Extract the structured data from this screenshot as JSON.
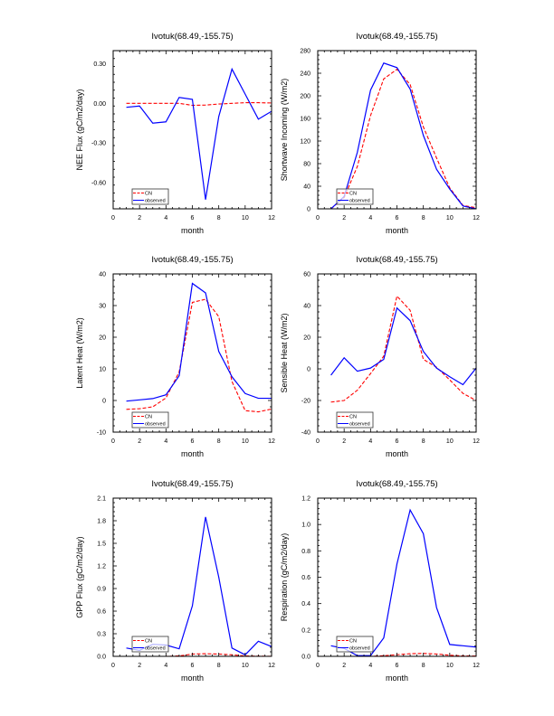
{
  "legend_labels": [
    "CN",
    "observed"
  ],
  "series_colors": {
    "CN": "#ff0000",
    "observed": "#0000ff"
  },
  "chart_data": [
    {
      "id": "nee",
      "type": "line",
      "title": "Ivotuk(68.49,-155.75)",
      "xlabel": "month",
      "ylabel": "NEE Flux (gC/m2/day)",
      "xlim": [
        0,
        12
      ],
      "ylim": [
        -0.8,
        0.4
      ],
      "xticks": [
        0,
        2,
        4,
        6,
        8,
        10,
        12
      ],
      "xtick_labels": [
        "0",
        "2",
        "4",
        "6",
        "8",
        "10",
        "12"
      ],
      "yticks": [
        -0.6,
        -0.3,
        0.0,
        0.3
      ],
      "ytick_labels": [
        "-0.60",
        "-0.30",
        "0.00",
        "0.30"
      ],
      "legend_position": "bottom-left",
      "x": [
        1,
        2,
        3,
        4,
        5,
        6,
        7,
        8,
        9,
        10,
        11,
        12
      ],
      "series": [
        {
          "name": "CN",
          "values": [
            0.0,
            0.0,
            0.0,
            0.0,
            0.0,
            -0.015,
            -0.013,
            -0.005,
            0.0,
            0.005,
            0.005,
            0.003
          ]
        },
        {
          "name": "observed",
          "values": [
            -0.03,
            -0.02,
            -0.15,
            -0.14,
            0.045,
            0.03,
            -0.73,
            -0.1,
            0.26,
            0.07,
            -0.12,
            -0.06
          ]
        }
      ]
    },
    {
      "id": "shortwave",
      "type": "line",
      "title": "Ivotuk(68.49,-155.75)",
      "xlabel": "month",
      "ylabel": "Shortwave Incoming (W/m2)",
      "xlim": [
        0,
        12
      ],
      "ylim": [
        0,
        280
      ],
      "xticks": [
        0,
        2,
        4,
        6,
        8,
        10,
        12
      ],
      "xtick_labels": [
        "0",
        "2",
        "4",
        "6",
        "8",
        "10",
        "12"
      ],
      "yticks": [
        0,
        40,
        80,
        120,
        160,
        200,
        240,
        280
      ],
      "ytick_labels": [
        "0",
        "40",
        "80",
        "120",
        "160",
        "200",
        "240",
        "280"
      ],
      "legend_position": "bottom-left",
      "x": [
        1,
        2,
        3,
        4,
        5,
        6,
        7,
        8,
        9,
        10,
        11,
        12
      ],
      "series": [
        {
          "name": "CN",
          "values": [
            0,
            20,
            75,
            165,
            230,
            247,
            220,
            145,
            90,
            37,
            6,
            2
          ]
        },
        {
          "name": "observed",
          "values": [
            0,
            22,
            100,
            210,
            258,
            250,
            212,
            130,
            70,
            35,
            5,
            0
          ]
        }
      ]
    },
    {
      "id": "latent",
      "type": "line",
      "title": "Ivotuk(68.49,-155.75)",
      "xlabel": "month",
      "ylabel": "Latent Heat (W/m2)",
      "xlim": [
        0,
        12
      ],
      "ylim": [
        -10,
        40
      ],
      "xticks": [
        0,
        2,
        4,
        6,
        8,
        10,
        12
      ],
      "xtick_labels": [
        "0",
        "2",
        "4",
        "6",
        "8",
        "10",
        "12"
      ],
      "yticks": [
        -10,
        0,
        10,
        20,
        30,
        40
      ],
      "ytick_labels": [
        "-10",
        "0",
        "10",
        "20",
        "30",
        "40"
      ],
      "legend_position": "bottom-left",
      "x": [
        1,
        2,
        3,
        4,
        5,
        6,
        7,
        8,
        9,
        10,
        11,
        12
      ],
      "series": [
        {
          "name": "CN",
          "values": [
            -2.8,
            -2.6,
            -2.0,
            0.8,
            9.0,
            31.0,
            32.0,
            26.5,
            6.0,
            -3.2,
            -3.6,
            -2.7
          ]
        },
        {
          "name": "observed",
          "values": [
            -0.2,
            0.2,
            0.6,
            1.8,
            7.8,
            37.0,
            34.0,
            15.5,
            7.5,
            2.2,
            0.7,
            0.7
          ]
        }
      ]
    },
    {
      "id": "sensible",
      "type": "line",
      "title": "Ivotuk(68.49,-155.75)",
      "xlabel": "month",
      "ylabel": "Sensible Heat (W/m2)",
      "xlim": [
        0,
        12
      ],
      "ylim": [
        -40,
        60
      ],
      "xticks": [
        0,
        2,
        4,
        6,
        8,
        10,
        12
      ],
      "xtick_labels": [
        "0",
        "2",
        "4",
        "6",
        "8",
        "10",
        "12"
      ],
      "yticks": [
        -40,
        -20,
        0,
        20,
        40,
        60
      ],
      "ytick_labels": [
        "-40",
        "-20",
        "0",
        "20",
        "40",
        "60"
      ],
      "legend_position": "bottom-left",
      "x": [
        1,
        2,
        3,
        4,
        5,
        6,
        7,
        8,
        9,
        10,
        11,
        12
      ],
      "series": [
        {
          "name": "CN",
          "values": [
            -21,
            -20,
            -13.5,
            -3,
            8,
            46,
            37,
            6,
            1,
            -7,
            -15.5,
            -20
          ]
        },
        {
          "name": "observed",
          "values": [
            -4,
            7,
            -1.5,
            0.5,
            6,
            38.5,
            30.5,
            11,
            0.5,
            -5,
            -10,
            0.5
          ]
        }
      ]
    },
    {
      "id": "gpp",
      "type": "line",
      "title": "Ivotuk(68.49,-155.75)",
      "xlabel": "month",
      "ylabel": "GPP Flux (gC/m2/day)",
      "xlim": [
        0,
        12
      ],
      "ylim": [
        0,
        2.1
      ],
      "xticks": [
        0,
        2,
        4,
        6,
        8,
        10,
        12
      ],
      "xtick_labels": [
        "0",
        "2",
        "4",
        "6",
        "8",
        "10",
        "12"
      ],
      "yticks": [
        0,
        0.3,
        0.6,
        0.9,
        1.2,
        1.5,
        1.8,
        2.1
      ],
      "ytick_labels": [
        "0.0",
        "0.3",
        "0.6",
        "0.9",
        "1.2",
        "1.5",
        "1.8",
        "2.1"
      ],
      "legend_position": "bottom-left",
      "x": [
        1,
        2,
        3,
        4,
        5,
        6,
        7,
        8,
        9,
        10,
        11,
        12
      ],
      "series": [
        {
          "name": "CN",
          "values": [
            0,
            0,
            0,
            0,
            0.005,
            0.03,
            0.035,
            0.03,
            0.02,
            0.005,
            0.002,
            0.001
          ]
        },
        {
          "name": "observed",
          "values": [
            0.11,
            0.08,
            0.16,
            0.15,
            0.1,
            0.67,
            1.85,
            1.05,
            0.11,
            0.02,
            0.2,
            0.13
          ]
        }
      ]
    },
    {
      "id": "respiration",
      "type": "line",
      "title": "Ivotuk(68.49,-155.75)",
      "xlabel": "month",
      "ylabel": "Respiration (gC/m2/day)",
      "xlim": [
        0,
        12
      ],
      "ylim": [
        0,
        1.2
      ],
      "xticks": [
        0,
        2,
        4,
        6,
        8,
        10,
        12
      ],
      "xtick_labels": [
        "0",
        "2",
        "4",
        "6",
        "8",
        "10",
        "12"
      ],
      "yticks": [
        0,
        0.2,
        0.4,
        0.6,
        0.8,
        1.0,
        1.2
      ],
      "ytick_labels": [
        "0.0",
        "0.2",
        "0.4",
        "0.6",
        "0.8",
        "1.0",
        "1.2"
      ],
      "legend_position": "bottom-left",
      "x": [
        1,
        2,
        3,
        4,
        5,
        6,
        7,
        8,
        9,
        10,
        11,
        12
      ],
      "series": [
        {
          "name": "CN",
          "values": [
            0,
            0,
            0,
            0,
            0.005,
            0.012,
            0.02,
            0.022,
            0.018,
            0.008,
            0.003,
            0.002
          ]
        },
        {
          "name": "observed",
          "values": [
            0.08,
            0.06,
            0.005,
            0.005,
            0.14,
            0.7,
            1.11,
            0.93,
            0.37,
            0.09,
            0.08,
            0.07
          ]
        }
      ]
    }
  ]
}
